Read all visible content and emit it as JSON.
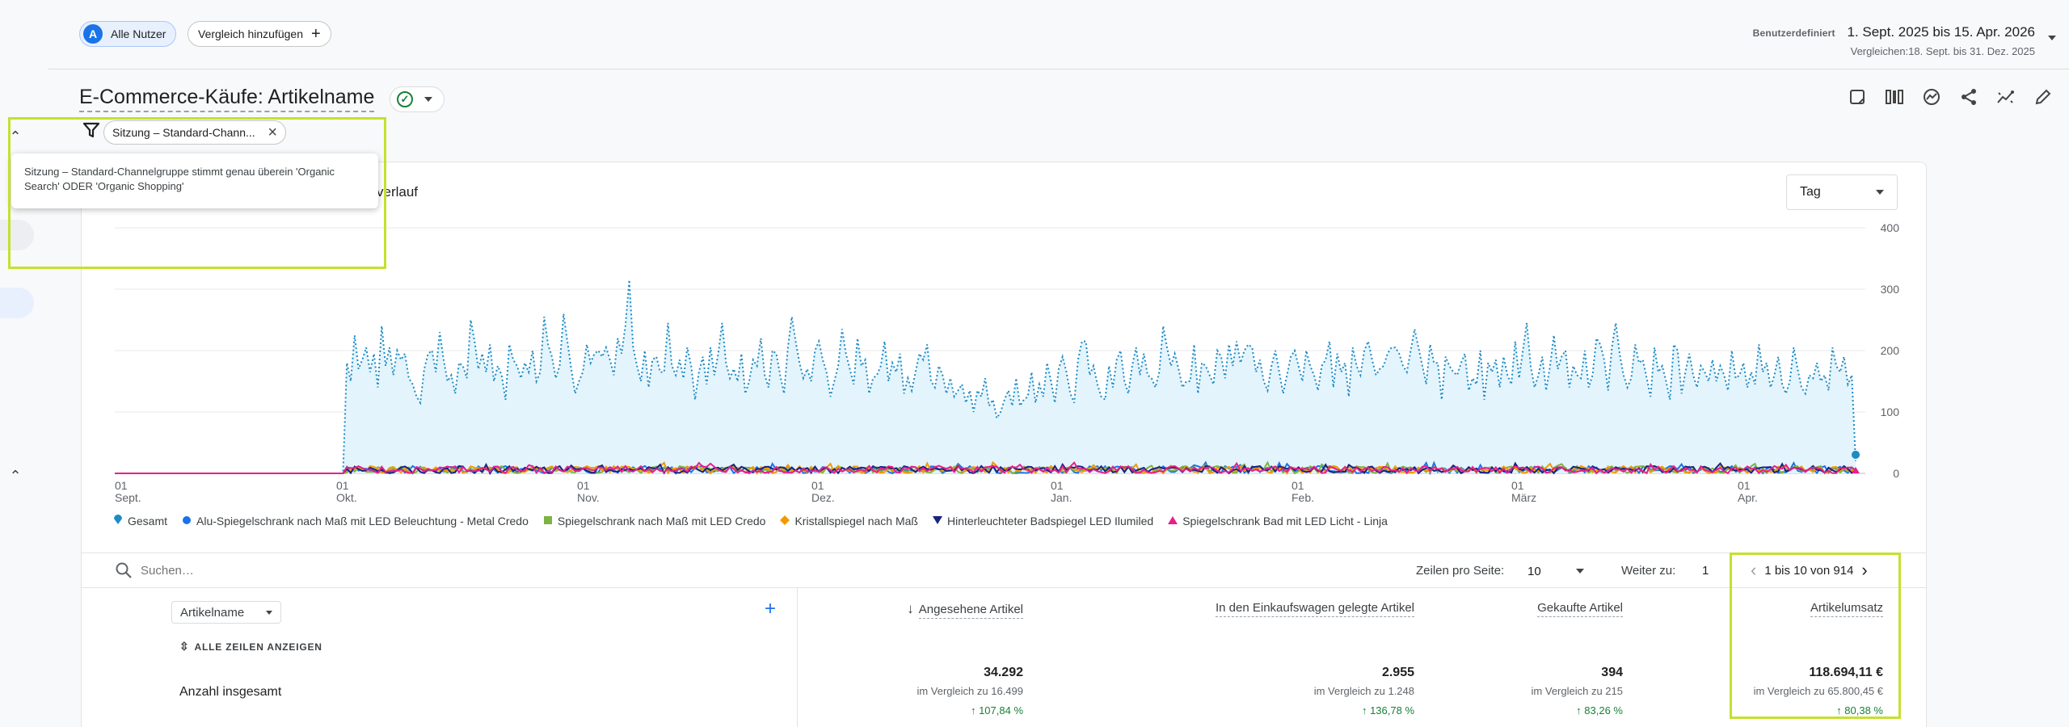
{
  "colors": {
    "accent": "#1a73e8",
    "highlight": "#c5e02e",
    "positive": "#188038",
    "gesamt": "#1e8bc3"
  },
  "header": {
    "users_avatar": "A",
    "users_chip": "Alle Nutzer",
    "compare_chip": "Vergleich hinzufügen",
    "date_label": "Benutzerdefiniert",
    "date_range": "1. Sept. 2025 bis 15. Apr. 2026",
    "compare_range": "Vergleichen:18. Sept. bis 31. Dez. 2025"
  },
  "report": {
    "title": "E-Commerce-Käufe: Artikelname",
    "status_icon": "check-circle-icon"
  },
  "toolbar": {
    "icons": [
      "annotation-icon",
      "compare-columns-icon",
      "insights-icon",
      "share-icon",
      "trend-icon",
      "edit-icon"
    ]
  },
  "filter": {
    "chip": "Sitzung – Standard-Chann...",
    "tooltip": "Sitzung – Standard-Channelgruppe stimmt genau überein 'Organic Search' ODER 'Organic Shopping'"
  },
  "chart": {
    "title_visible": "verlauf",
    "granularity": "Tag"
  },
  "chart_data": {
    "type": "line",
    "y_ticks": [
      "400",
      "300",
      "200",
      "100",
      "0"
    ],
    "ylim": [
      0,
      400
    ],
    "x_ticks": [
      {
        "day": "01",
        "month": "Sept."
      },
      {
        "day": "01",
        "month": "Okt."
      },
      {
        "day": "01",
        "month": "Nov."
      },
      {
        "day": "01",
        "month": "Dez."
      },
      {
        "day": "01",
        "month": "Jan."
      },
      {
        "day": "01",
        "month": "Feb."
      },
      {
        "day": "01",
        "month": "März"
      },
      {
        "day": "01",
        "month": "Apr."
      }
    ],
    "series": [
      {
        "name": "Gesamt",
        "color": "#1e8bc3",
        "marker": "pin"
      },
      {
        "name": "Alu-Spiegelschrank nach Maß mit LED Beleuchtung - Metal Credo",
        "color": "#1a73e8",
        "marker": "circle"
      },
      {
        "name": "Spiegelschrank nach Maß mit LED Credo",
        "color": "#7cb342",
        "marker": "square"
      },
      {
        "name": "Kristallspiegel nach Maß",
        "color": "#f29900",
        "marker": "diamond"
      },
      {
        "name": "Hinterleuchteter Badspiegel LED Ilumiled",
        "color": "#1a237e",
        "marker": "triangle-down"
      },
      {
        "name": "Spiegelschrank Bad mit LED Licht - Linja",
        "color": "#e91e8c",
        "marker": "triangle-up"
      }
    ],
    "gesamt_values": [
      0,
      0,
      0,
      0,
      0,
      0,
      0,
      0,
      0,
      0,
      0,
      0,
      0,
      0,
      0,
      0,
      0,
      0,
      0,
      0,
      0,
      0,
      0,
      0,
      0,
      0,
      0,
      0,
      0,
      0,
      0,
      0,
      0,
      0,
      0,
      0,
      0,
      0,
      0,
      0,
      0,
      0,
      0,
      0,
      0,
      0,
      0,
      0,
      0,
      0,
      0,
      0,
      0,
      0,
      0,
      0,
      0,
      0,
      0,
      0,
      180,
      150,
      225,
      170,
      185,
      205,
      165,
      195,
      140,
      240,
      175,
      205,
      160,
      200,
      185,
      195,
      155,
      145,
      125,
      115,
      170,
      195,
      200,
      165,
      230,
      185,
      150,
      160,
      130,
      180,
      175,
      155,
      250,
      215,
      170,
      195,
      165,
      210,
      150,
      175,
      160,
      120,
      210,
      185,
      175,
      155,
      180,
      165,
      200,
      150,
      165,
      255,
      210,
      190,
      155,
      175,
      260,
      215,
      170,
      130,
      150,
      165,
      210,
      180,
      195,
      200,
      190,
      205,
      185,
      160,
      220,
      195,
      240,
      315,
      205,
      175,
      150,
      200,
      140,
      185,
      190,
      165,
      165,
      245,
      175,
      160,
      185,
      155,
      205,
      175,
      120,
      165,
      190,
      145,
      205,
      160,
      195,
      245,
      180,
      155,
      170,
      150,
      195,
      130,
      150,
      185,
      175,
      220,
      160,
      140,
      200,
      195,
      160,
      130,
      205,
      255,
      215,
      180,
      155,
      170,
      150,
      200,
      215,
      185,
      165,
      125,
      150,
      175,
      235,
      195,
      170,
      145,
      220,
      175,
      185,
      130,
      155,
      160,
      175,
      215,
      150,
      180,
      165,
      195,
      130,
      155,
      135,
      165,
      195,
      185,
      210,
      150,
      140,
      175,
      160,
      130,
      155,
      125,
      135,
      145,
      115,
      135,
      100,
      135,
      125,
      155,
      110,
      120,
      90,
      100,
      120,
      135,
      110,
      155,
      110,
      120,
      125,
      165,
      115,
      145,
      125,
      180,
      150,
      115,
      170,
      190,
      165,
      130,
      115,
      185,
      215,
      215,
      160,
      175,
      145,
      125,
      120,
      175,
      140,
      185,
      200,
      150,
      130,
      175,
      205,
      160,
      195,
      160,
      155,
      140,
      165,
      240,
      205,
      175,
      195,
      170,
      140,
      150,
      150,
      210,
      130,
      180,
      175,
      160,
      145,
      200,
      190,
      155,
      210,
      175,
      215,
      180,
      200,
      210,
      205,
      165,
      185,
      150,
      135,
      175,
      200,
      165,
      130,
      160,
      190,
      200,
      175,
      150,
      200,
      175,
      160,
      135,
      175,
      185,
      215,
      140,
      195,
      165,
      180,
      125,
      205,
      175,
      160,
      200,
      215,
      185,
      160,
      170,
      175,
      195,
      205,
      205,
      195,
      175,
      165,
      200,
      235,
      205,
      175,
      145,
      210,
      180,
      180,
      120,
      190,
      175,
      165,
      160,
      180,
      195,
      135,
      155,
      145,
      200,
      120,
      180,
      165,
      185,
      140,
      190,
      160,
      145,
      215,
      155,
      200,
      245,
      175,
      140,
      160,
      190,
      135,
      175,
      225,
      170,
      190,
      200,
      140,
      175,
      160,
      155,
      200,
      140,
      160,
      220,
      210,
      185,
      135,
      205,
      245,
      195,
      160,
      140,
      155,
      210,
      180,
      185,
      155,
      125,
      205,
      165,
      175,
      150,
      120,
      210,
      200,
      130,
      165,
      195,
      160,
      140,
      175,
      165,
      150,
      185,
      150,
      175,
      160,
      135,
      200,
      155,
      160,
      180,
      140,
      165,
      145,
      210,
      165,
      180,
      140,
      160,
      190,
      145,
      130,
      150,
      205,
      170,
      140,
      130,
      160,
      155,
      180,
      150,
      160,
      135,
      205,
      175,
      165,
      190,
      145,
      160,
      20
    ],
    "product_series_range": [
      0,
      12
    ]
  },
  "table": {
    "search_placeholder": "Suchen…",
    "rows_per_page_label": "Zeilen pro Seite:",
    "rows_per_page": "10",
    "goto_label": "Weiter zu:",
    "goto_value": "1",
    "pager": "1 bis 10 von 914",
    "dimension": "Artikelname",
    "show_all": "ALLE ZEILEN ANZEIGEN",
    "total_label": "Anzahl insgesamt",
    "columns": [
      {
        "label": "Angesehene Artikel",
        "sorted": true,
        "value": "34.292",
        "compare": "im Vergleich zu 16.499",
        "change": "107,84 %"
      },
      {
        "label": "In den Einkaufswagen gelegte Artikel",
        "value": "2.955",
        "compare": "im Vergleich zu 1.248",
        "change": "136,78 %"
      },
      {
        "label": "Gekaufte Artikel",
        "value": "394",
        "compare": "im Vergleich zu 215",
        "change": "83,26 %"
      },
      {
        "label": "Artikelumsatz",
        "value": "118.694,11 €",
        "compare": "im Vergleich zu 65.800,45 €",
        "change": "80,38 %"
      }
    ]
  }
}
